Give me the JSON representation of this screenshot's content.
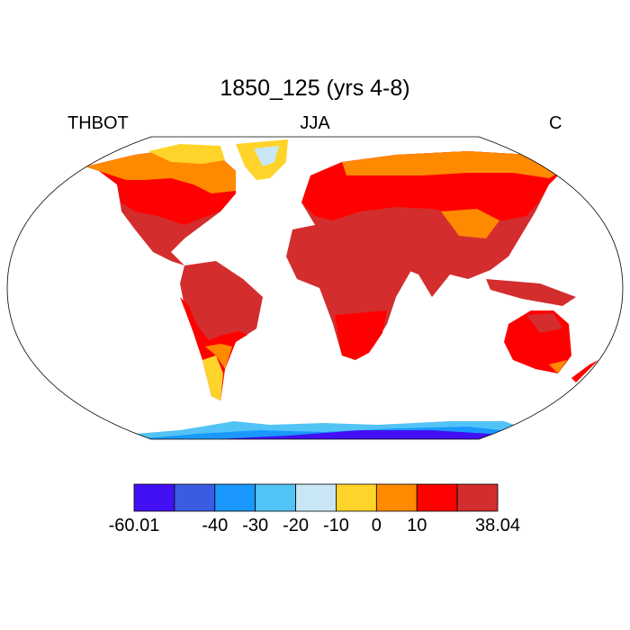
{
  "title": "1850_125 (yrs 4-8)",
  "left_string": "THBOT",
  "center_string": "JJA",
  "right_string": "C",
  "colorbar": {
    "colors": [
      "#4310f5",
      "#3a5ce3",
      "#1a98ff",
      "#52c3f5",
      "#c8e6f5",
      "#ffd42a",
      "#ff8a00",
      "#ff0000",
      "#d42d2d"
    ],
    "labels": [
      "-60.01",
      "-40",
      "-30",
      "-20",
      "-10",
      "0",
      "10",
      "38.04"
    ]
  }
}
